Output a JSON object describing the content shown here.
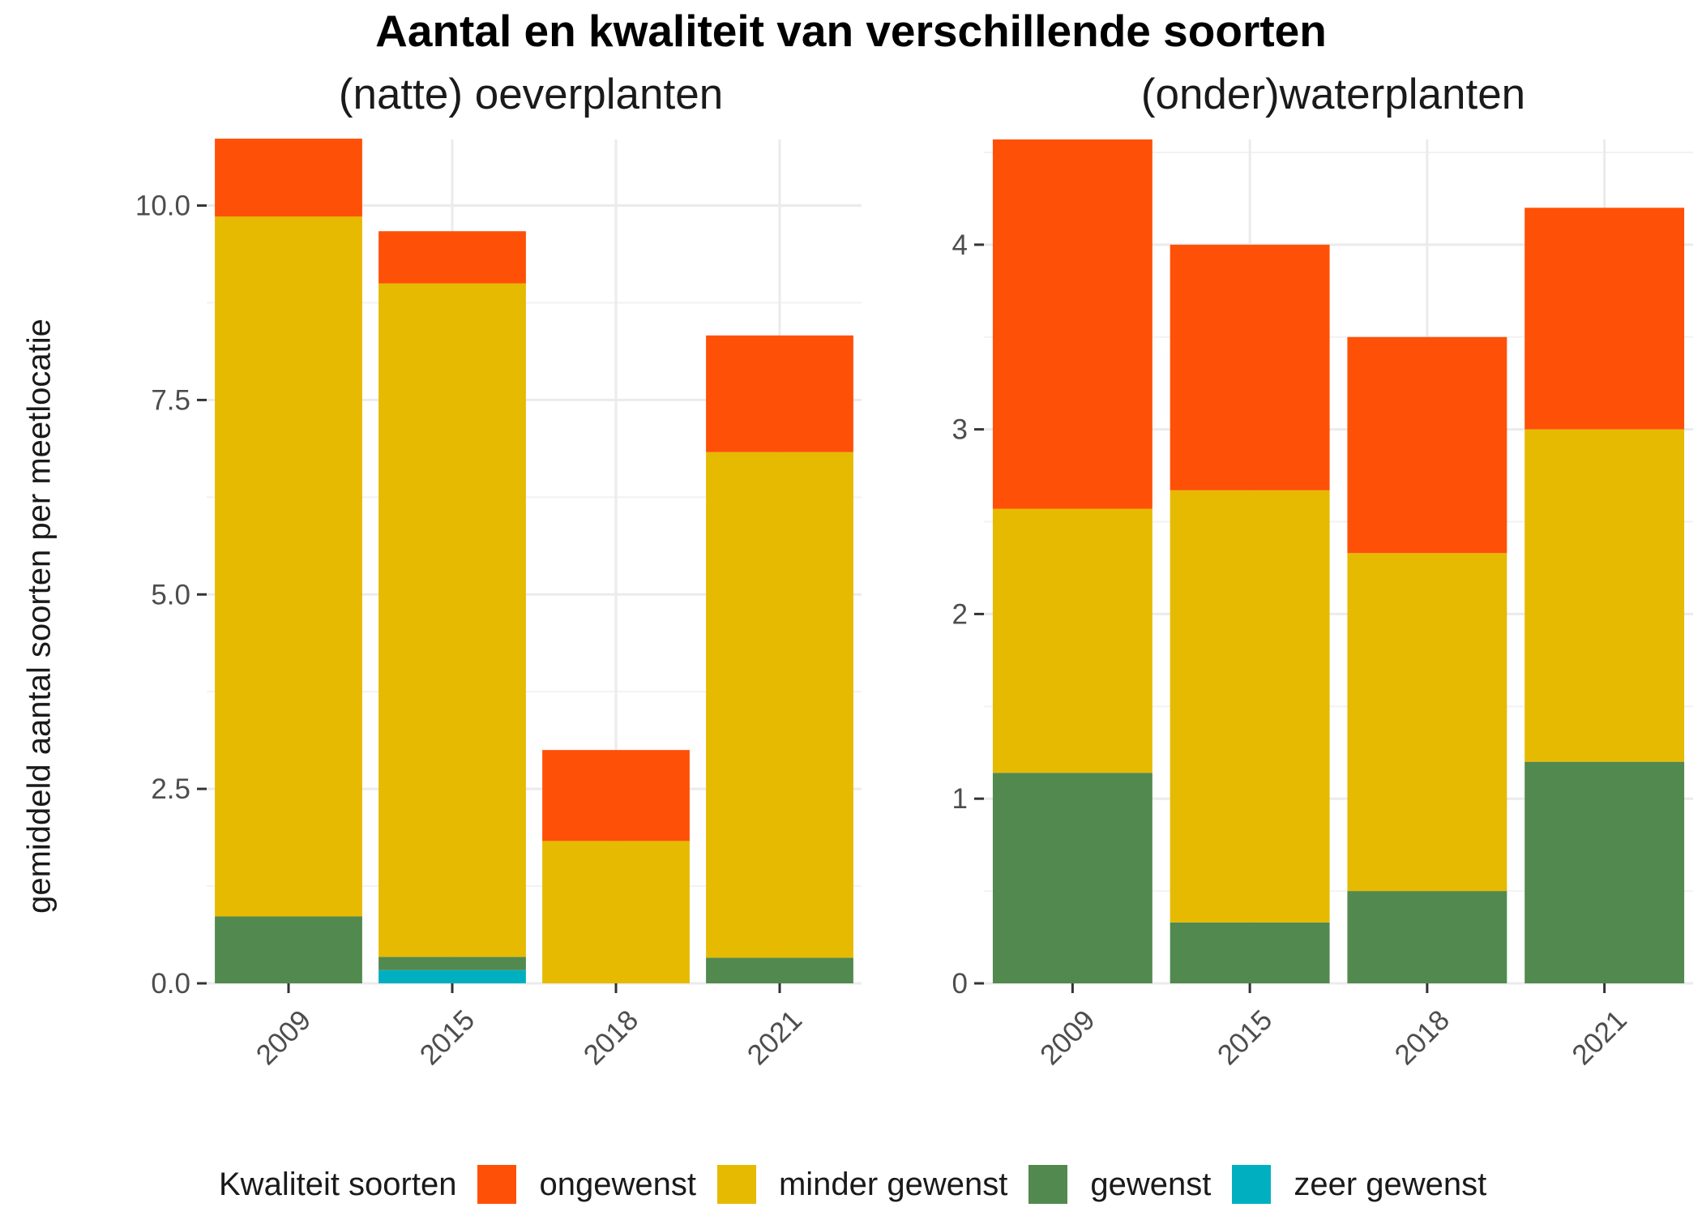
{
  "chart_data": {
    "type": "bar",
    "stacked": true,
    "title": "Aantal en kwaliteit van verschillende soorten",
    "ylabel": "gemiddeld aantal soorten per meetlocatie",
    "legend": {
      "title": "Kwaliteit soorten",
      "position": "bottom",
      "entries": [
        {
          "name": "ongewenst",
          "color": "#FF5008"
        },
        {
          "name": "minder gewenst",
          "color": "#E6BA00"
        },
        {
          "name": "gewenst",
          "color": "#52894F"
        },
        {
          "name": "zeer gewenst",
          "color": "#00B0C0"
        }
      ]
    },
    "panels": [
      {
        "title": "(natte) oeverplanten",
        "categories": [
          "2009",
          "2015",
          "2018",
          "2021"
        ],
        "ylim": [
          0,
          10.85
        ],
        "yticks": [
          0,
          2.5,
          5,
          7.5,
          10
        ],
        "ytick_labels": [
          "0.0",
          "2.5",
          "5.0",
          "7.5",
          "10.0"
        ],
        "grid": true,
        "series": [
          {
            "name": "zeer gewenst",
            "values": [
              0,
              0.17,
              0,
              0
            ]
          },
          {
            "name": "gewenst",
            "values": [
              0.86,
              0.17,
              0,
              0.33
            ]
          },
          {
            "name": "minder gewenst",
            "values": [
              9.0,
              8.66,
              1.83,
              6.5
            ]
          },
          {
            "name": "ongewenst",
            "values": [
              1.0,
              0.67,
              1.17,
              1.5
            ]
          }
        ]
      },
      {
        "title": "(onder)waterplanten",
        "categories": [
          "2009",
          "2015",
          "2018",
          "2021"
        ],
        "ylim": [
          0,
          4.57
        ],
        "yticks": [
          0,
          1,
          2,
          3,
          4
        ],
        "ytick_labels": [
          "0",
          "1",
          "2",
          "3",
          "4"
        ],
        "grid": true,
        "series": [
          {
            "name": "zeer gewenst",
            "values": [
              0,
              0,
              0,
              0
            ]
          },
          {
            "name": "gewenst",
            "values": [
              1.14,
              0.33,
              0.5,
              1.2
            ]
          },
          {
            "name": "minder gewenst",
            "values": [
              1.43,
              2.34,
              1.83,
              1.8
            ]
          },
          {
            "name": "ongewenst",
            "values": [
              2.0,
              1.33,
              1.17,
              1.2
            ]
          }
        ]
      }
    ]
  }
}
